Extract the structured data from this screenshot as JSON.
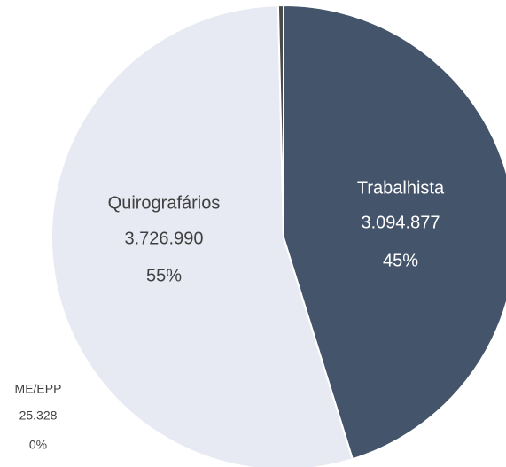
{
  "chart_data": {
    "type": "pie",
    "categories": [
      "Trabalhista",
      "Quirografários",
      "ME/EPP"
    ],
    "values": [
      3094877,
      3726990,
      25328
    ],
    "value_labels": [
      "3.094.877",
      "3.726.990",
      "25.328"
    ],
    "percent_labels": [
      {
        "value": 45,
        "label": "45%"
      },
      {
        "value": 55,
        "label": "55%"
      },
      {
        "value": 0,
        "label": "0%"
      }
    ],
    "colors": [
      "#44546a",
      "#e8eaf3",
      "#4a4a4a"
    ]
  }
}
